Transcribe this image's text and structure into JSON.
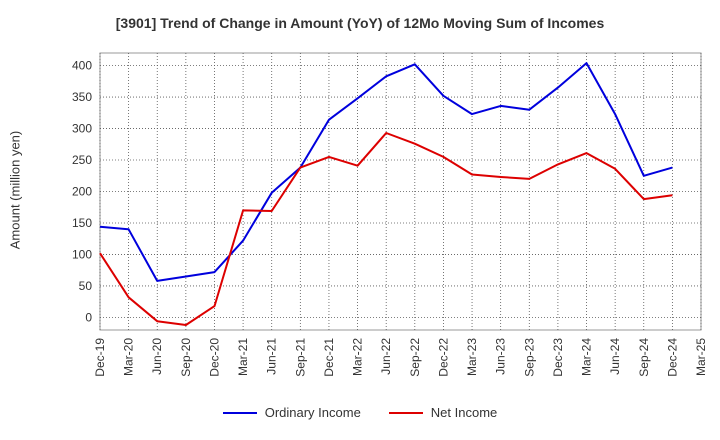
{
  "chart_data": {
    "type": "line",
    "title": "[3901]  Trend of Change in Amount (YoY) of 12Mo Moving Sum of Incomes",
    "ylabel": "Amount (million yen)",
    "xlabel": "",
    "ylim": [
      -20,
      420
    ],
    "yticks": [
      0,
      50,
      100,
      150,
      200,
      250,
      300,
      350,
      400
    ],
    "categories": [
      "Dec-19",
      "Mar-20",
      "Jun-20",
      "Sep-20",
      "Dec-20",
      "Mar-21",
      "Jun-21",
      "Sep-21",
      "Dec-21",
      "Mar-22",
      "Jun-22",
      "Sep-22",
      "Dec-22",
      "Mar-23",
      "Jun-23",
      "Sep-23",
      "Dec-23",
      "Mar-24",
      "Jun-24",
      "Sep-24",
      "Dec-24",
      "Mar-25"
    ],
    "grid": true,
    "legend_position": "bottom",
    "series": [
      {
        "name": "Ordinary Income",
        "color": "#0000dd",
        "values": [
          144,
          140,
          58,
          65,
          72,
          122,
          198,
          238,
          314,
          348,
          383,
          402,
          352,
          323,
          336,
          330,
          365,
          404,
          323,
          225,
          238,
          null
        ]
      },
      {
        "name": "Net Income",
        "color": "#dd0000",
        "values": [
          102,
          32,
          -6,
          -12,
          18,
          170,
          169,
          238,
          255,
          241,
          293,
          276,
          255,
          227,
          223,
          220,
          243,
          261,
          236,
          188,
          194,
          null
        ]
      }
    ]
  }
}
